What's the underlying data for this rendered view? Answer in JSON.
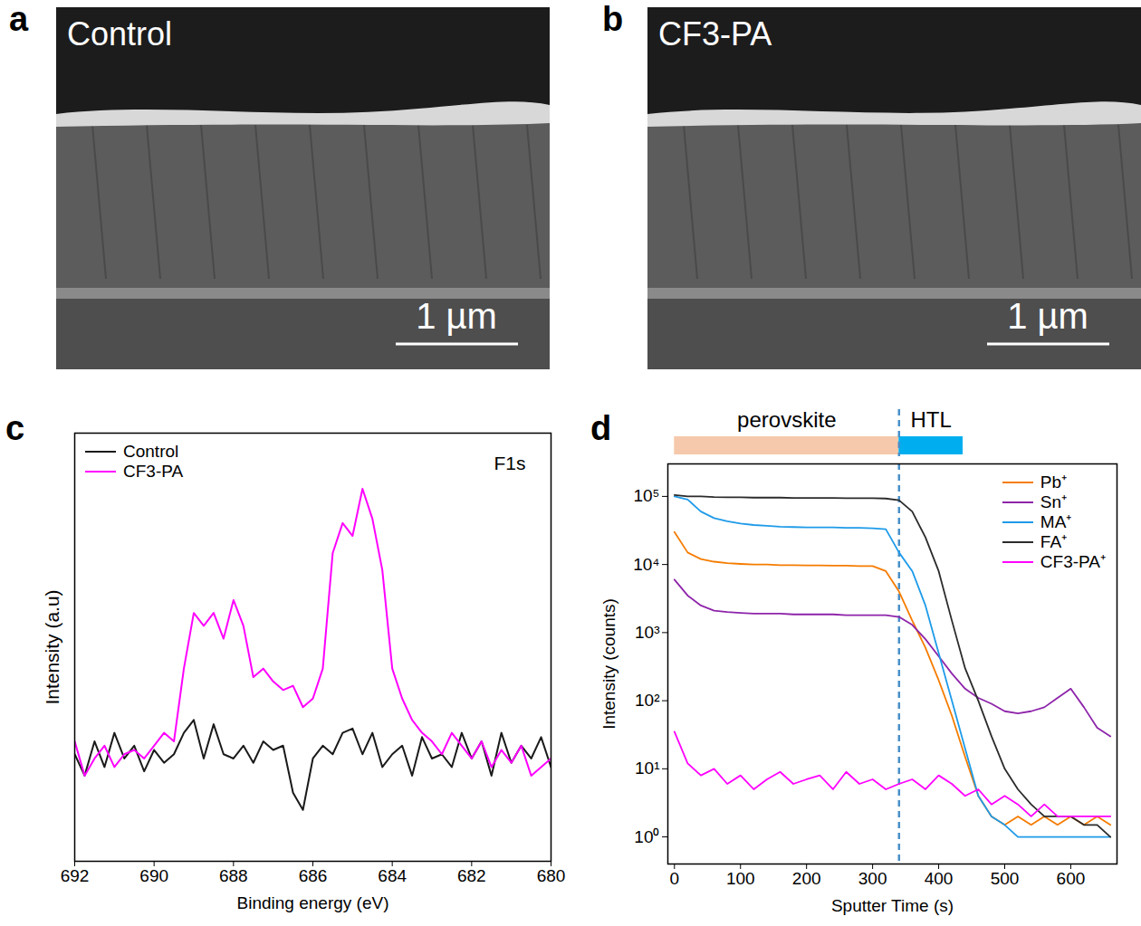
{
  "images": [
    {
      "panel_label": "a",
      "label": "Control",
      "scale_bar": "1 µm"
    },
    {
      "panel_label": "b",
      "label": "CF3-PA",
      "scale_bar": "1 µm"
    }
  ],
  "chart_data": [
    {
      "type": "line",
      "panel_label": "c",
      "annotation": "F1s",
      "x_label": "Binding energy (eV)",
      "y_label": "Intensity (a.u)",
      "xlim": [
        692,
        680
      ],
      "xticks": [
        692,
        690,
        688,
        686,
        684,
        682,
        680
      ],
      "ylim": [
        0,
        100
      ],
      "tick_labels": "x",
      "legend": "top-left",
      "grid": false,
      "x": [
        692,
        691.75,
        691.5,
        691.25,
        691,
        690.75,
        690.5,
        690.25,
        690,
        689.75,
        689.5,
        689.25,
        689,
        688.75,
        688.5,
        688.25,
        688,
        687.75,
        687.5,
        687.25,
        687,
        686.75,
        686.5,
        686.25,
        686,
        685.75,
        685.5,
        685.25,
        685,
        684.75,
        684.5,
        684.25,
        684,
        683.75,
        683.5,
        683.25,
        683,
        682.75,
        682.5,
        682.25,
        682,
        681.75,
        681.5,
        681.25,
        681,
        680.75,
        680.5,
        680.25,
        680
      ],
      "series": [
        {
          "name": "Control",
          "color": "#1a1a1a",
          "values": [
            25,
            20,
            28,
            22,
            30,
            24,
            27,
            21,
            26,
            23,
            25,
            30,
            33,
            24,
            32,
            25,
            24,
            27,
            23,
            28,
            26,
            27,
            16,
            12,
            24,
            27,
            25,
            30,
            31,
            25,
            30,
            22,
            25,
            27,
            20,
            29,
            24,
            25,
            22,
            30,
            24,
            28,
            20,
            30,
            23,
            27,
            24,
            29,
            22
          ]
        },
        {
          "name": "CF3-PA",
          "color": "#ff00ff",
          "values": [
            28,
            20,
            24,
            27,
            22,
            25,
            26,
            24,
            27,
            30,
            28,
            45,
            58,
            55,
            58,
            52,
            61,
            55,
            43,
            45,
            42,
            40,
            41,
            36,
            38,
            45,
            72,
            79,
            76,
            87,
            80,
            68,
            45,
            38,
            33,
            30,
            28,
            25,
            30,
            27,
            24,
            28,
            22,
            26,
            23,
            27,
            20,
            22,
            24
          ]
        }
      ]
    },
    {
      "type": "line",
      "panel_label": "d",
      "log": "y",
      "x_label": "Sputter Time (s)",
      "y_label": "Intensity (counts)",
      "xlim": [
        -10,
        670
      ],
      "xticks": [
        0,
        100,
        200,
        300,
        400,
        500,
        600
      ],
      "ylim": [
        0.4,
        300000
      ],
      "yticks": [
        {
          "value": 1,
          "label": "10⁰"
        },
        {
          "value": 10,
          "label": "10¹"
        },
        {
          "value": 100,
          "label": "10²"
        },
        {
          "value": 1000,
          "label": "10³"
        },
        {
          "value": 10000,
          "label": "10⁴"
        },
        {
          "value": 100000,
          "label": "10⁵"
        }
      ],
      "legend": "top-right",
      "grid": false,
      "regions": [
        {
          "label": "perovskite",
          "start": 0,
          "end": 340,
          "color": "#f6c9ac"
        },
        {
          "label": "HTL",
          "start": 340,
          "end": 437,
          "color": "#00aeef"
        }
      ],
      "divider": 340,
      "x": [
        0,
        20,
        40,
        60,
        80,
        100,
        120,
        140,
        160,
        180,
        200,
        220,
        240,
        260,
        280,
        300,
        320,
        340,
        360,
        380,
        400,
        420,
        440,
        460,
        480,
        500,
        520,
        540,
        560,
        580,
        600,
        620,
        640,
        660
      ],
      "series": [
        {
          "name": "Pb⁺",
          "color": "#f57c00",
          "values": [
            30000,
            15000,
            12000,
            11000,
            10500,
            10200,
            10000,
            10000,
            9800,
            9800,
            9700,
            9700,
            9600,
            9600,
            9500,
            9500,
            8000,
            4000,
            1500,
            600,
            200,
            60,
            15,
            4,
            2,
            1.5,
            2,
            1.5,
            2,
            1.5,
            2,
            1.5,
            2,
            1.5
          ]
        },
        {
          "name": "Sn⁺",
          "color": "#8e24aa",
          "values": [
            6000,
            3500,
            2500,
            2100,
            2000,
            1950,
            1900,
            1900,
            1900,
            1850,
            1850,
            1850,
            1850,
            1800,
            1800,
            1800,
            1800,
            1700,
            1300,
            800,
            450,
            250,
            150,
            110,
            90,
            70,
            65,
            70,
            80,
            110,
            150,
            80,
            40,
            30
          ]
        },
        {
          "name": "MA⁺",
          "color": "#1e9be9",
          "values": [
            100000,
            90000,
            60000,
            48000,
            43000,
            40000,
            38000,
            37000,
            36000,
            35500,
            35000,
            35000,
            35000,
            34500,
            34500,
            34000,
            33000,
            15000,
            8000,
            2500,
            500,
            100,
            20,
            4,
            2,
            1.5,
            1,
            1,
            1,
            1,
            1,
            1,
            1,
            1
          ]
        },
        {
          "name": "FA⁺",
          "color": "#2b2b2b",
          "values": [
            105000,
            100000,
            100000,
            98000,
            97000,
            97000,
            96000,
            96000,
            96000,
            95000,
            95000,
            95000,
            95000,
            94000,
            94000,
            94000,
            93000,
            88000,
            60000,
            25000,
            8000,
            1500,
            300,
            100,
            30,
            10,
            5,
            3,
            2,
            2,
            2,
            1.5,
            1.5,
            1
          ]
        },
        {
          "name": "CF3-PA⁺",
          "color": "#ff00ff",
          "values": [
            35,
            12,
            8,
            10,
            6,
            8,
            5,
            7,
            9,
            6,
            7,
            8,
            5,
            9,
            6,
            7,
            5,
            6,
            7,
            5,
            8,
            6,
            4,
            5,
            3,
            4,
            3,
            2,
            3,
            2,
            2,
            2,
            2,
            2
          ]
        }
      ]
    }
  ]
}
